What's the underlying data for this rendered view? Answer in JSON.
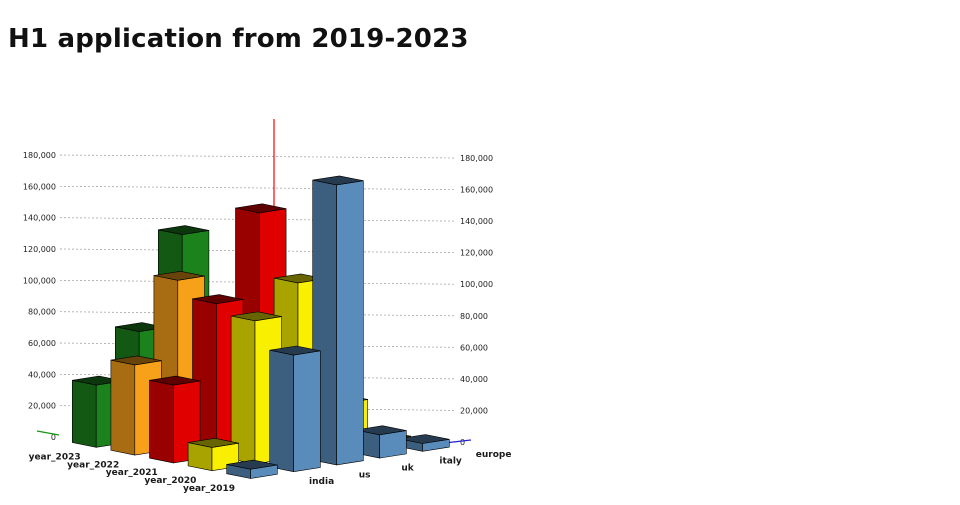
{
  "page": {
    "title": "H1 application from 2019-2023"
  },
  "chart_data": {
    "type": "bar",
    "projection": "3d",
    "title": "H1 application from 2019-2023",
    "grid": true,
    "legend": false,
    "value_axis": {
      "min": 0,
      "max": 180000,
      "tick_step": 20000,
      "tick_labels": [
        "0",
        "20,000",
        "40,000",
        "60,000",
        "80,000",
        "100,000",
        "120,000",
        "140,000",
        "160,000",
        "180,000"
      ],
      "sides": [
        "left",
        "right"
      ]
    },
    "row_categories": [
      "year_2019",
      "year_2020",
      "year_2021",
      "year_2022",
      "year_2023"
    ],
    "col_categories": [
      "india",
      "us",
      "uk",
      "italy",
      "europe"
    ],
    "series": [
      {
        "name": "year_2019",
        "color": "#5a8cbb",
        "values": [
          6000,
          75000,
          180000,
          15000,
          5000
        ]
      },
      {
        "name": "year_2020",
        "color": "#f8f000",
        "values": [
          15000,
          92000,
          112000,
          30000,
          2000
        ]
      },
      {
        "name": "year_2021",
        "color": "#e10000",
        "values": [
          50000,
          98000,
          152000,
          8000,
          1500
        ]
      },
      {
        "name": "year_2022",
        "color": "#f7a11a",
        "values": [
          58000,
          108000,
          40000,
          5000,
          1200
        ]
      },
      {
        "name": "year_2023",
        "color": "#1c831c",
        "values": [
          40000,
          70000,
          128000,
          4000,
          1000
        ]
      }
    ],
    "axis_colors": {
      "value_axis": "#ff0000",
      "year_axis": "#119911",
      "country_axis": "#2222cc"
    },
    "grid_color": "#999999"
  }
}
